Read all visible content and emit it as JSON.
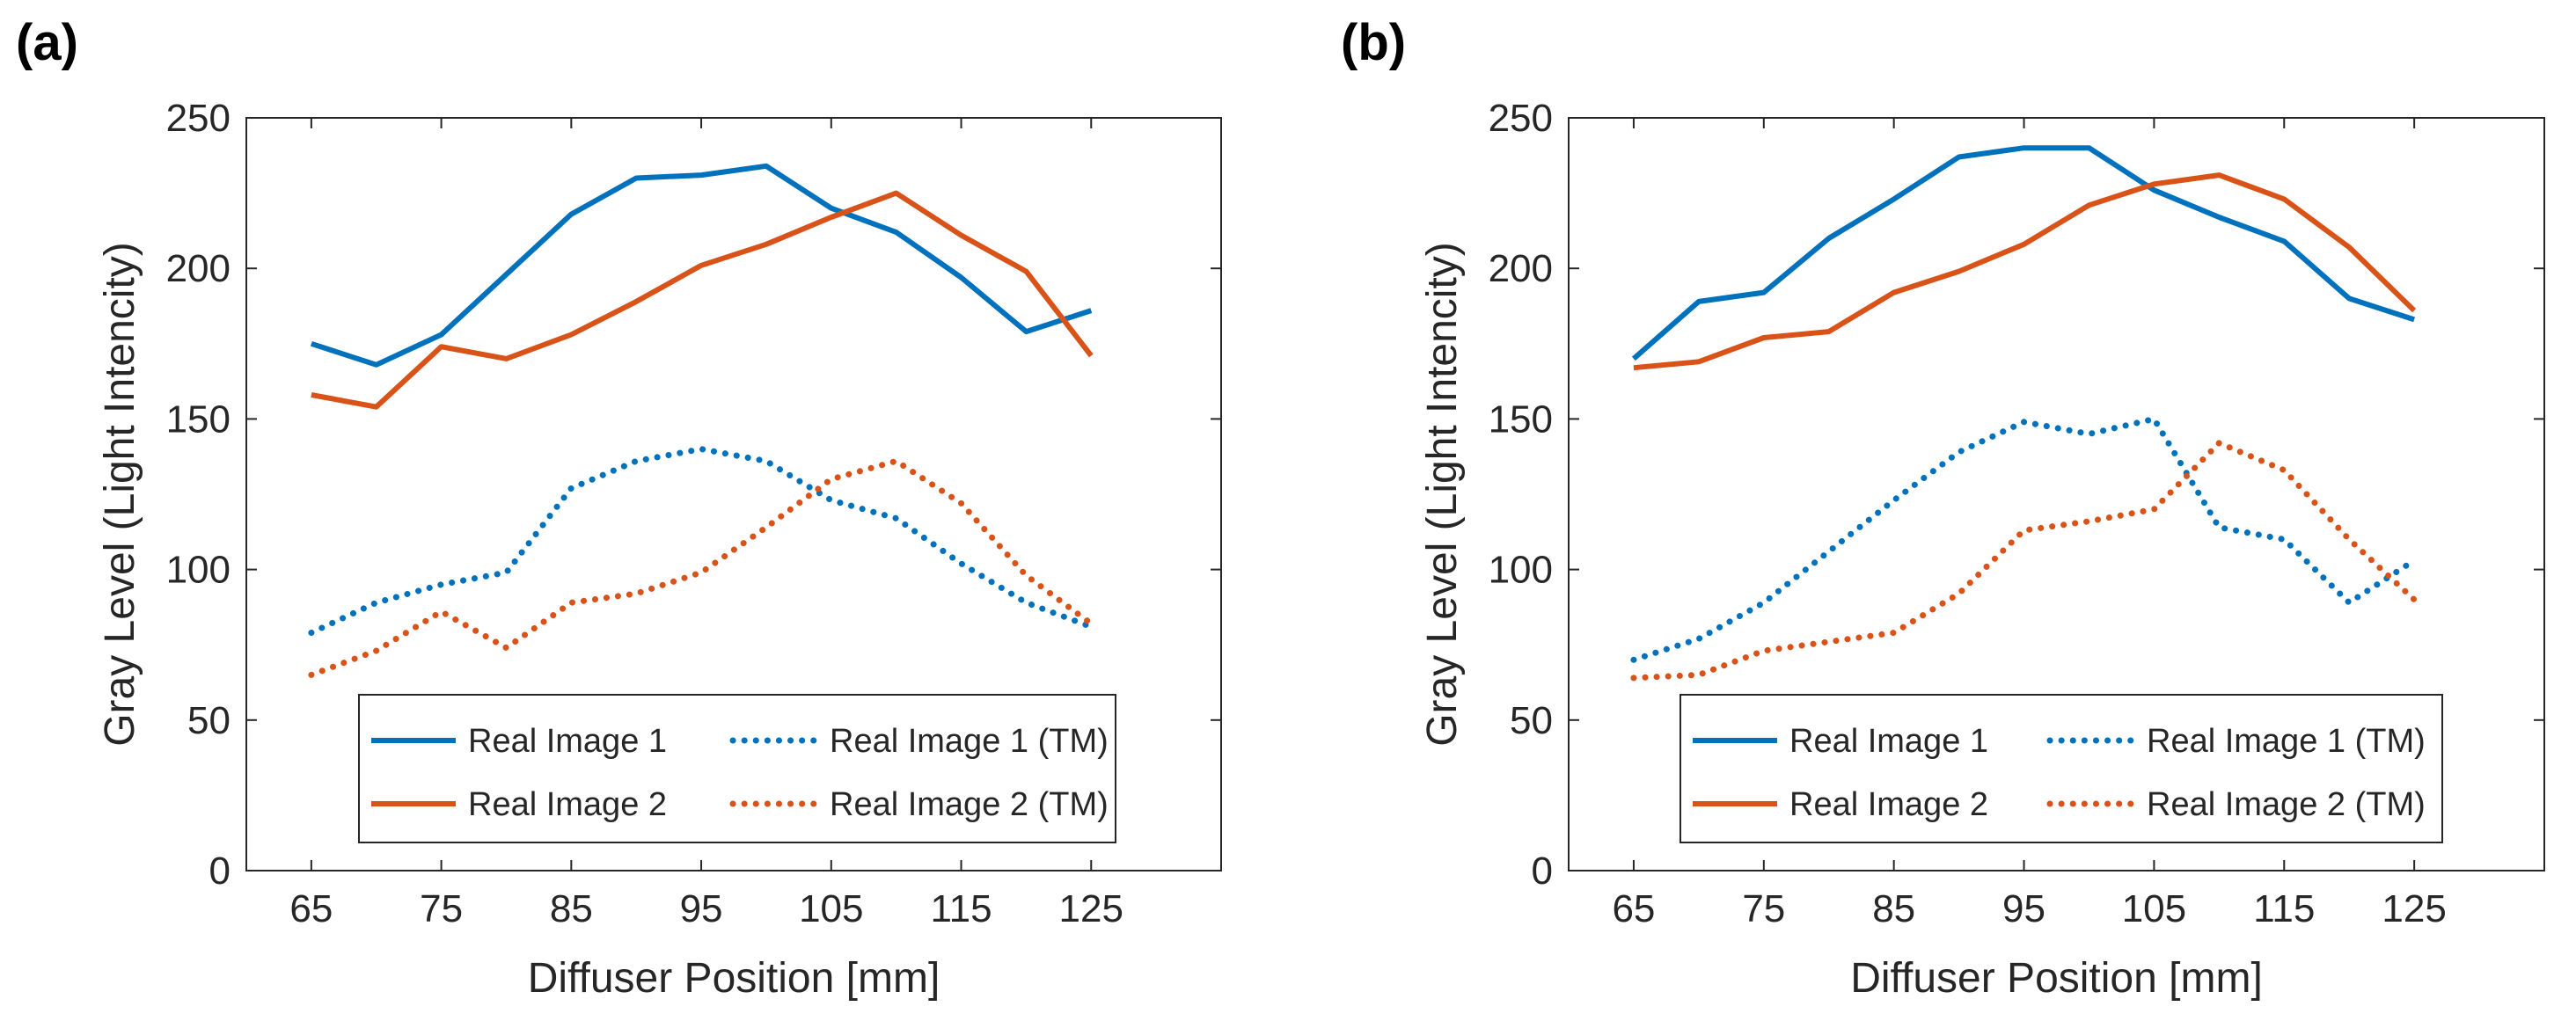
{
  "colors": {
    "series1": "#0072BD",
    "series2": "#D95319",
    "axis": "#262626"
  },
  "chart_data": [
    {
      "type": "line",
      "panel_label": "(a)",
      "xlabel": "Diffuser Position [mm]",
      "ylabel": "Gray Level (Light Intencity)",
      "xlim": [
        60,
        135
      ],
      "ylim": [
        0,
        250
      ],
      "xticks": [
        65,
        75,
        85,
        95,
        105,
        115,
        125
      ],
      "yticks": [
        0,
        50,
        100,
        150,
        200,
        250
      ],
      "x": [
        65,
        70,
        75,
        80,
        85,
        90,
        95,
        100,
        105,
        110,
        115,
        120,
        125
      ],
      "series": [
        {
          "name": "Real Image 1",
          "style": "solid",
          "color": "#0072BD",
          "values": [
            175,
            168,
            178,
            198,
            218,
            230,
            231,
            234,
            220,
            212,
            197,
            179,
            186
          ]
        },
        {
          "name": "Real Image 2",
          "style": "solid",
          "color": "#D95319",
          "values": [
            158,
            154,
            174,
            170,
            178,
            189,
            201,
            208,
            217,
            225,
            211,
            199,
            171
          ]
        },
        {
          "name": "Real Image 1 (TM)",
          "style": "dotted",
          "color": "#0072BD",
          "values": [
            79,
            89,
            95,
            99,
            127,
            136,
            140,
            136,
            123,
            117,
            102,
            89,
            81
          ]
        },
        {
          "name": "Real Image 2 (TM)",
          "style": "dotted",
          "color": "#D95319",
          "values": [
            65,
            73,
            86,
            74,
            89,
            92,
            99,
            114,
            130,
            136,
            122,
            98,
            82
          ]
        }
      ],
      "legend": {
        "position": "bottom",
        "entries": [
          "Real Image 1",
          "Real Image 1 (TM)",
          "Real Image 2",
          "Real Image 2 (TM)"
        ]
      }
    },
    {
      "type": "line",
      "panel_label": "(b)",
      "xlabel": "Diffuser Position [mm]",
      "ylabel": "Gray Level (Light Intencity)",
      "xlim": [
        60,
        135
      ],
      "ylim": [
        0,
        250
      ],
      "xticks": [
        65,
        75,
        85,
        95,
        105,
        115,
        125
      ],
      "yticks": [
        0,
        50,
        100,
        150,
        200,
        250
      ],
      "x": [
        65,
        70,
        75,
        80,
        85,
        90,
        95,
        100,
        105,
        110,
        115,
        120,
        125
      ],
      "series": [
        {
          "name": "Real Image 1",
          "style": "solid",
          "color": "#0072BD",
          "values": [
            170,
            189,
            192,
            210,
            223,
            237,
            240,
            240,
            226,
            217,
            209,
            190,
            183
          ]
        },
        {
          "name": "Real Image 2",
          "style": "solid",
          "color": "#D95319",
          "values": [
            167,
            169,
            177,
            179,
            192,
            199,
            208,
            221,
            228,
            231,
            223,
            207,
            186
          ]
        },
        {
          "name": "Real Image 1 (TM)",
          "style": "dotted",
          "color": "#0072BD",
          "values": [
            70,
            77,
            89,
            106,
            123,
            139,
            149,
            145,
            150,
            114,
            110,
            89,
            103
          ]
        },
        {
          "name": "Real Image 2 (TM)",
          "style": "dotted",
          "color": "#D95319",
          "values": [
            64,
            65,
            73,
            76,
            79,
            92,
            113,
            116,
            120,
            142,
            133,
            110,
            90
          ]
        }
      ],
      "legend": {
        "position": "bottom",
        "entries": [
          "Real Image 1",
          "Real Image 1 (TM)",
          "Real Image 2",
          "Real Image 2 (TM)"
        ]
      }
    }
  ]
}
